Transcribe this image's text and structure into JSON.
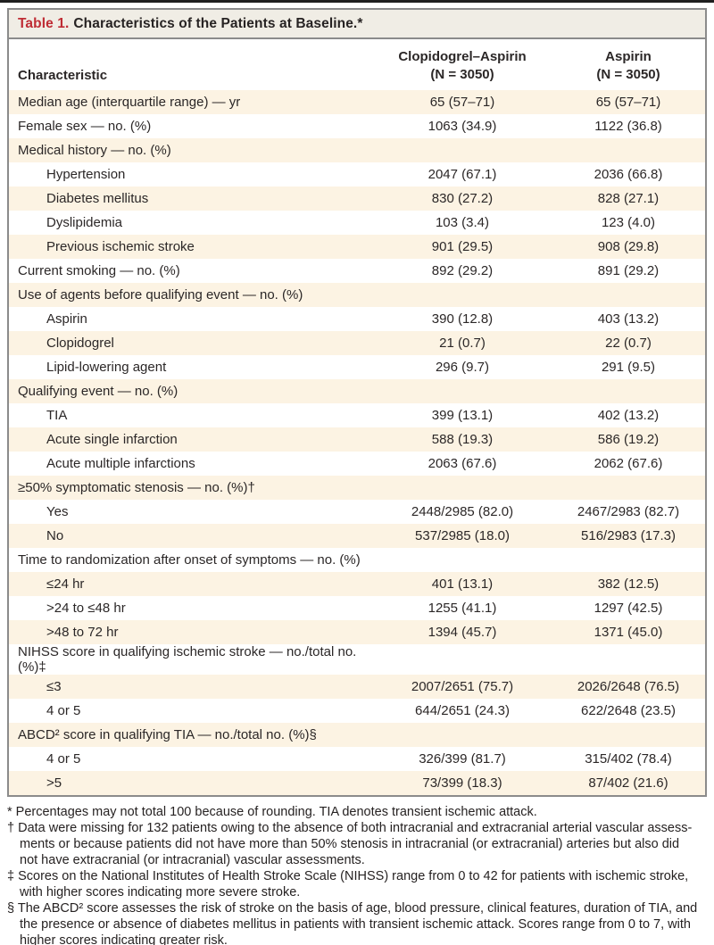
{
  "title": {
    "label": "Table 1.",
    "text": "Characteristics of the Patients at Baseline.*"
  },
  "columns": {
    "characteristic": "Characteristic",
    "group1": "Clopidogrel–Aspirin\n(N = 3050)",
    "group2": "Aspirin\n(N = 3050)"
  },
  "rows": [
    {
      "label": "Median age (interquartile range) — yr",
      "indent": 0,
      "v1": "65 (57–71)",
      "v2": "65 (57–71)"
    },
    {
      "label": "Female sex — no. (%)",
      "indent": 0,
      "v1": "1063 (34.9)",
      "v2": "1122 (36.8)"
    },
    {
      "label": "Medical history — no. (%)",
      "indent": 0,
      "v1": "",
      "v2": ""
    },
    {
      "label": "Hypertension",
      "indent": 1,
      "v1": "2047 (67.1)",
      "v2": "2036 (66.8)"
    },
    {
      "label": "Diabetes mellitus",
      "indent": 1,
      "v1": "830 (27.2)",
      "v2": "828 (27.1)"
    },
    {
      "label": "Dyslipidemia",
      "indent": 1,
      "v1": "103 (3.4)",
      "v2": "123 (4.0)"
    },
    {
      "label": "Previous ischemic stroke",
      "indent": 1,
      "v1": "901 (29.5)",
      "v2": "908 (29.8)"
    },
    {
      "label": "Current smoking — no. (%)",
      "indent": 0,
      "v1": "892 (29.2)",
      "v2": "891 (29.2)"
    },
    {
      "label": "Use of agents before qualifying event — no. (%)",
      "indent": 0,
      "v1": "",
      "v2": ""
    },
    {
      "label": "Aspirin",
      "indent": 1,
      "v1": "390 (12.8)",
      "v2": "403 (13.2)"
    },
    {
      "label": "Clopidogrel",
      "indent": 1,
      "v1": "21 (0.7)",
      "v2": "22 (0.7)"
    },
    {
      "label": "Lipid-lowering agent",
      "indent": 1,
      "v1": "296 (9.7)",
      "v2": "291 (9.5)"
    },
    {
      "label": "Qualifying event — no. (%)",
      "indent": 0,
      "v1": "",
      "v2": ""
    },
    {
      "label": "TIA",
      "indent": 1,
      "v1": "399 (13.1)",
      "v2": "402 (13.2)"
    },
    {
      "label": "Acute single infarction",
      "indent": 1,
      "v1": "588 (19.3)",
      "v2": "586 (19.2)"
    },
    {
      "label": "Acute multiple infarctions",
      "indent": 1,
      "v1": "2063 (67.6)",
      "v2": "2062 (67.6)"
    },
    {
      "label": "≥50% symptomatic stenosis — no. (%)†",
      "indent": 0,
      "v1": "",
      "v2": ""
    },
    {
      "label": "Yes",
      "indent": 1,
      "v1": "2448/2985 (82.0)",
      "v2": "2467/2983 (82.7)"
    },
    {
      "label": "No",
      "indent": 1,
      "v1": "537/2985 (18.0)",
      "v2": "516/2983 (17.3)"
    },
    {
      "label": "Time to randomization after onset of symptoms — no. (%)",
      "indent": 0,
      "v1": "",
      "v2": ""
    },
    {
      "label": "≤24 hr",
      "indent": 1,
      "v1": "401 (13.1)",
      "v2": "382 (12.5)"
    },
    {
      "label": ">24 to ≤48 hr",
      "indent": 1,
      "v1": "1255 (41.1)",
      "v2": "1297 (42.5)"
    },
    {
      "label": ">48 to 72 hr",
      "indent": 1,
      "v1": "1394 (45.7)",
      "v2": "1371 (45.0)"
    },
    {
      "label": "NIHSS score in qualifying ischemic stroke — no./total no. (%)‡",
      "indent": 0,
      "v1": "",
      "v2": ""
    },
    {
      "label": "≤3",
      "indent": 1,
      "v1": "2007/2651 (75.7)",
      "v2": "2026/2648 (76.5)"
    },
    {
      "label": "4 or 5",
      "indent": 1,
      "v1": "644/2651 (24.3)",
      "v2": "622/2648 (23.5)"
    },
    {
      "label": "ABCD² score in qualifying TIA — no./total no. (%)§",
      "indent": 0,
      "v1": "",
      "v2": ""
    },
    {
      "label": "4 or 5",
      "indent": 1,
      "v1": "326/399 (81.7)",
      "v2": "315/402 (78.4)"
    },
    {
      "label": ">5",
      "indent": 1,
      "v1": "73/399 (18.3)",
      "v2": "87/402 (21.6)"
    }
  ],
  "footnotes": [
    "* Percentages may not total 100 because of rounding. TIA denotes transient ischemic attack.",
    "† Data were missing for 132 patients owing to the absence of both intracranial and extracranial arterial vascular assess-\nments or because patients did not have more than 50% stenosis in intracranial (or extracranial) arteries but also did\nnot have extracranial (or intracranial) vascular assessments.",
    "‡ Scores on the National Institutes of Health Stroke Scale (NIHSS) range from 0 to 42 for patients with ischemic stroke,\nwith higher scores indicating more severe stroke.",
    "§ The ABCD² score assesses the risk of stroke on the basis of age, blood pressure, clinical features, duration of TIA, and\nthe presence or absence of diabetes mellitus in patients with transient ischemic attack. Scores range from 0 to 7, with\nhigher scores indicating greater risk."
  ],
  "colors": {
    "accent_red": "#bf2c34",
    "row_beige": "#fcf3e3",
    "title_bar_bg": "#f0ede5",
    "border_gray": "#8b8b8b",
    "text": "#2b2727"
  }
}
